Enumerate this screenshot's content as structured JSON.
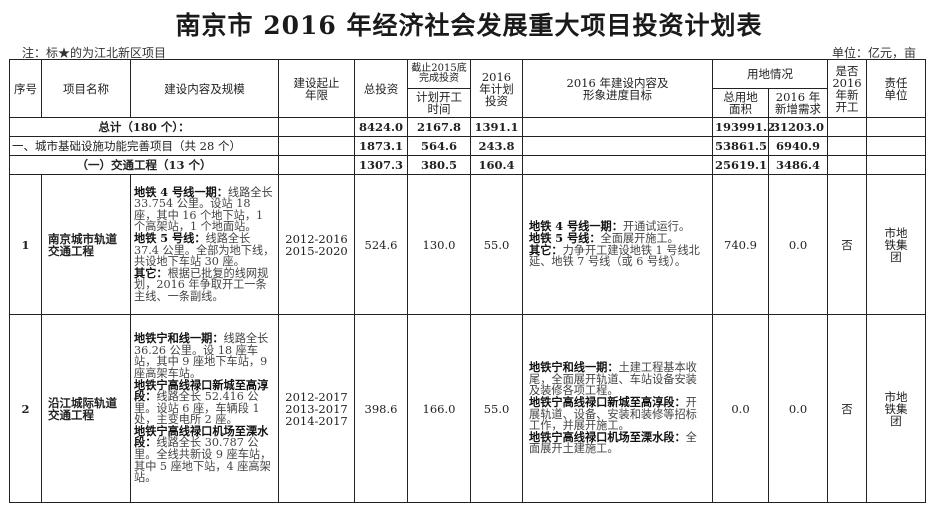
{
  "title": "南京市 2016 年经济社会发展重大项目投资计划表",
  "note": "注：标★的为江北新区项目",
  "unit": "单位：亿元，亩",
  "headers": {
    "seq": "序号",
    "name": "项目名称",
    "content": "建设内容及规模",
    "period": "建设起止年限",
    "total": "总投资",
    "done_2015": "截止2015底完成投资",
    "start_time": "计划开工时间",
    "plan_2016": "2016 年计划投资",
    "target_2016": "2016 年建设内容及形象进度目标",
    "land": "用地情况",
    "land_total": "总用地面积",
    "land_new": "2016 年新增需求",
    "new_start": "是否2016年新开工",
    "owner": "责任单位"
  },
  "summary_rows": [
    {
      "label": "总计（180 个）：",
      "total": "8424.0",
      "done": "2167.8",
      "plan": "1391.1",
      "land_total": "193991.2",
      "land_new": "31203.0"
    },
    {
      "label": "一、城市基础设施功能完善项目（共 28 个）",
      "total": "1873.1",
      "done": "564.6",
      "plan": "243.8",
      "land_total": "53861.5",
      "land_new": "6940.9"
    },
    {
      "label": "（一）交通工程（13 个）",
      "total": "1307.3",
      "done": "380.5",
      "plan": "160.4",
      "land_total": "25619.1",
      "land_new": "3486.4"
    }
  ],
  "projects": [
    {
      "seq": "1",
      "name": "南京城市轨道交通工程",
      "content": [
        {
          "b": "地铁 4 号线一期：",
          "t": "线路全长 33.754 公里。设站 18 座，其中 16 个地下站，1 个高架站，1 个地面站。"
        },
        {
          "b": "地铁 5 号线：",
          "t": "线路全长 37.4 公里。全部为地下线，共设地下车站 30 座。"
        },
        {
          "b": "其它：",
          "t": "根据已批复的线网规划，2016 年争取开工一条主线、一条副线。"
        }
      ],
      "period": [
        "2012-2016",
        "2015-2020"
      ],
      "total": "524.6",
      "done": "130.0",
      "plan": "55.0",
      "target": [
        {
          "b": "地铁 4 号线一期：",
          "t": "开通试运行。"
        },
        {
          "b": "地铁 5 号线：",
          "t": "全面展开施工。"
        },
        {
          "b": "其它：",
          "t": "力争开工建设地铁 1 号线北延、地铁 7 号线（或 6 号线）。"
        }
      ],
      "land_total": "740.9",
      "land_new": "0.0",
      "new_start": "否",
      "owner": "市地铁集团"
    },
    {
      "seq": "2",
      "name": "沿江城际轨道交通工程",
      "content": [
        {
          "b": "地铁宁和线一期：",
          "t": "线路全长 36.26 公里。设 18 座车站，其中 9 座地下车站，9 座高架车站。"
        },
        {
          "b": "地铁宁高线禄口新城至高淳段：",
          "t": "线路全长 52.416 公里。设站 6 座，车辆段 1 处，主变电所 2 座。"
        },
        {
          "b": "地铁宁高线禄口机场至溧水段：",
          "t": "线路全长 30.787 公里。全线共新设 9 座车站，其中 5 座地下站，4 座高架站。"
        }
      ],
      "period": [
        "2012-2017",
        "2013-2017",
        "2014-2017"
      ],
      "total": "398.6",
      "done": "166.0",
      "plan": "55.0",
      "target": [
        {
          "b": "地铁宁和线一期：",
          "t": "土建工程基本收尾，全面展开轨道、车站设备安装及装修各项工程。"
        },
        {
          "b": "地铁宁高线禄口新城至高淳段：",
          "t": "开展轨道、设备、安装和装修等招标工作，并展开施工。"
        },
        {
          "b": "地铁宁高线禄口机场至溧水段：",
          "t": "全面展开土建施工。"
        }
      ],
      "land_total": "0.0",
      "land_new": "0.0",
      "new_start": "否",
      "owner": "市地铁集团"
    }
  ]
}
